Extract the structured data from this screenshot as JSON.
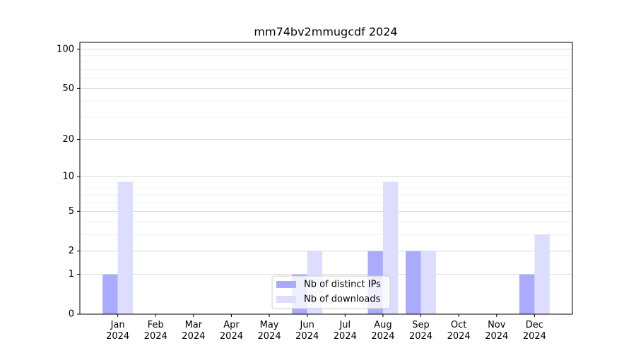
{
  "chart_data": {
    "type": "bar",
    "title": "mm74bv2mmugcdf 2024",
    "categories": [
      "Jan\n2024",
      "Feb\n2024",
      "Mar\n2024",
      "Apr\n2024",
      "May\n2024",
      "Jun\n2024",
      "Jul\n2024",
      "Aug\n2024",
      "Sep\n2024",
      "Oct\n2024",
      "Nov\n2024",
      "Dec\n2024"
    ],
    "series": [
      {
        "name": "Nb of distinct IPs",
        "color": "#aaaaff",
        "values": [
          1,
          0,
          0,
          0,
          0,
          1,
          0,
          2,
          2,
          0,
          0,
          1
        ]
      },
      {
        "name": "Nb of downloads",
        "color": "#ddddff",
        "values": [
          9,
          0,
          0,
          0,
          0,
          2,
          0,
          9,
          2,
          0,
          0,
          3
        ]
      }
    ],
    "yscale": "log1p",
    "ylim": [
      0,
      113
    ],
    "yticks": [
      0,
      1,
      2,
      5,
      10,
      20,
      50,
      100
    ],
    "minor_yticks": [
      3,
      4,
      6,
      7,
      8,
      9,
      30,
      40,
      60,
      70,
      80,
      90
    ],
    "grid": true,
    "legend": "lower center"
  }
}
